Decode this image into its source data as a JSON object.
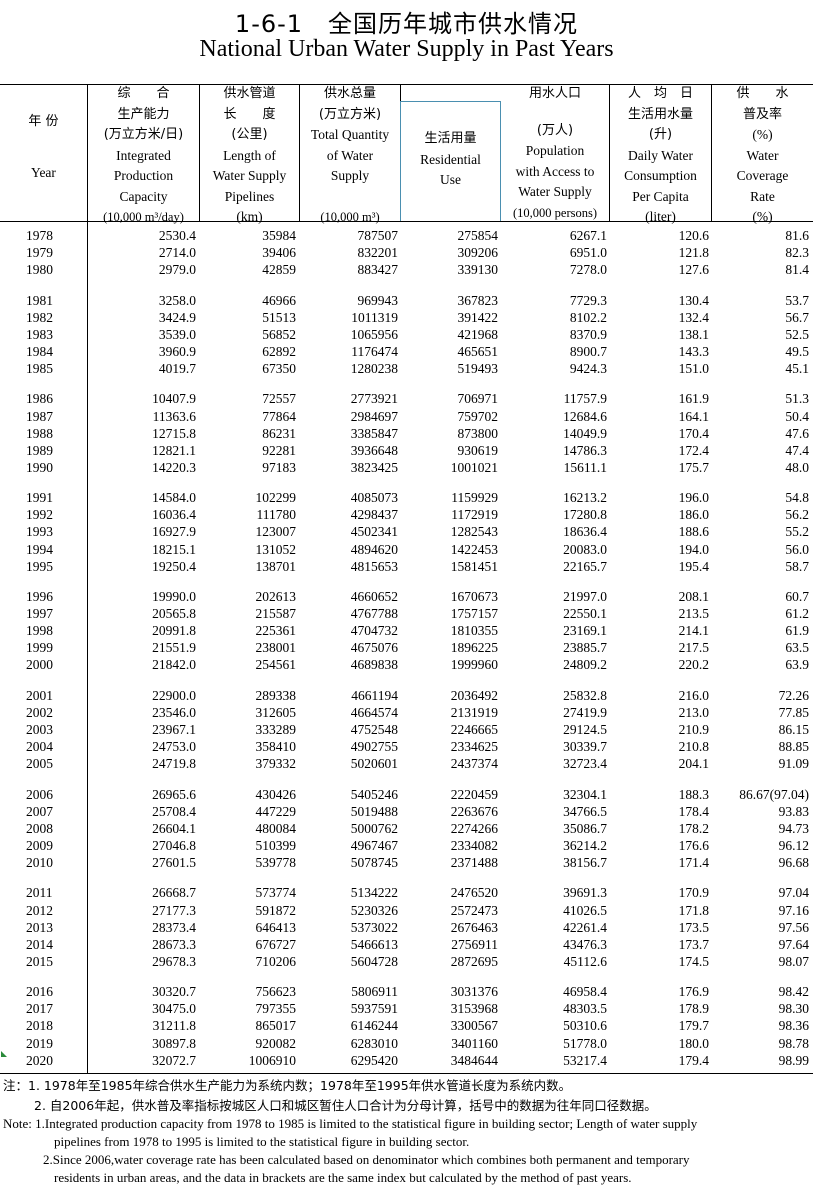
{
  "title": {
    "cn": "1-6-1　全国历年城市供水情况",
    "en": "National Urban Water Supply in Past Years"
  },
  "headers": {
    "year": {
      "cn": "年  份",
      "en": "Year"
    },
    "capacity": {
      "cn1": "综　　合",
      "cn2": "生产能力",
      "cn3": "(万立方米/日)",
      "en1": "Integrated",
      "en2": "Production",
      "en3": "Capacity",
      "unit": "(10,000 m³/day)"
    },
    "pipelines": {
      "cn1": "供水管道",
      "cn2": "长　　度",
      "cn3": "(公里)",
      "en1": "Length of",
      "en2": "Water Supply",
      "en3": "Pipelines",
      "unit": "(km)"
    },
    "total": {
      "cn1": "供水总量",
      "cn2": "(万立方米)",
      "en1": "Total Quantity",
      "en2": "of Water",
      "en3": "Supply",
      "unit": "(10,000 m³)"
    },
    "residential": {
      "cn": "生活用量",
      "en1": "Residential",
      "en2": "Use"
    },
    "population": {
      "cn1": "用水人口",
      "cn2": "(万人)",
      "en1": "Population",
      "en2": "with Access to",
      "en3": "Water Supply",
      "unit": "(10,000 persons)"
    },
    "daily": {
      "cn1": "人　均　日",
      "cn2": "生活用水量",
      "cn3": "(升)",
      "en1": "Daily Water",
      "en2": "Consumption",
      "en3": "Per Capita",
      "unit": "(liter)"
    },
    "coverage": {
      "cn1": "供　　水",
      "cn2": "普及率",
      "cn3": "(%)",
      "en1": "Water",
      "en2": "Coverage",
      "en3": "Rate",
      "unit": "(%)"
    }
  },
  "rows": [
    [
      "1978",
      "2530.4",
      "35984",
      "787507",
      "275854",
      "6267.1",
      "120.6",
      "81.6"
    ],
    [
      "1979",
      "2714.0",
      "39406",
      "832201",
      "309206",
      "6951.0",
      "121.8",
      "82.3"
    ],
    [
      "1980",
      "2979.0",
      "42859",
      "883427",
      "339130",
      "7278.0",
      "127.6",
      "81.4"
    ],
    [
      "1981",
      "3258.0",
      "46966",
      "969943",
      "367823",
      "7729.3",
      "130.4",
      "53.7"
    ],
    [
      "1982",
      "3424.9",
      "51513",
      "1011319",
      "391422",
      "8102.2",
      "132.4",
      "56.7"
    ],
    [
      "1983",
      "3539.0",
      "56852",
      "1065956",
      "421968",
      "8370.9",
      "138.1",
      "52.5"
    ],
    [
      "1984",
      "3960.9",
      "62892",
      "1176474",
      "465651",
      "8900.7",
      "143.3",
      "49.5"
    ],
    [
      "1985",
      "4019.7",
      "67350",
      "1280238",
      "519493",
      "9424.3",
      "151.0",
      "45.1"
    ],
    [
      "1986",
      "10407.9",
      "72557",
      "2773921",
      "706971",
      "11757.9",
      "161.9",
      "51.3"
    ],
    [
      "1987",
      "11363.6",
      "77864",
      "2984697",
      "759702",
      "12684.6",
      "164.1",
      "50.4"
    ],
    [
      "1988",
      "12715.8",
      "86231",
      "3385847",
      "873800",
      "14049.9",
      "170.4",
      "47.6"
    ],
    [
      "1989",
      "12821.1",
      "92281",
      "3936648",
      "930619",
      "14786.3",
      "172.4",
      "47.4"
    ],
    [
      "1990",
      "14220.3",
      "97183",
      "3823425",
      "1001021",
      "15611.1",
      "175.7",
      "48.0"
    ],
    [
      "1991",
      "14584.0",
      "102299",
      "4085073",
      "1159929",
      "16213.2",
      "196.0",
      "54.8"
    ],
    [
      "1992",
      "16036.4",
      "111780",
      "4298437",
      "1172919",
      "17280.8",
      "186.0",
      "56.2"
    ],
    [
      "1993",
      "16927.9",
      "123007",
      "4502341",
      "1282543",
      "18636.4",
      "188.6",
      "55.2"
    ],
    [
      "1994",
      "18215.1",
      "131052",
      "4894620",
      "1422453",
      "20083.0",
      "194.0",
      "56.0"
    ],
    [
      "1995",
      "19250.4",
      "138701",
      "4815653",
      "1581451",
      "22165.7",
      "195.4",
      "58.7"
    ],
    [
      "1996",
      "19990.0",
      "202613",
      "4660652",
      "1670673",
      "21997.0",
      "208.1",
      "60.7"
    ],
    [
      "1997",
      "20565.8",
      "215587",
      "4767788",
      "1757157",
      "22550.1",
      "213.5",
      "61.2"
    ],
    [
      "1998",
      "20991.8",
      "225361",
      "4704732",
      "1810355",
      "23169.1",
      "214.1",
      "61.9"
    ],
    [
      "1999",
      "21551.9",
      "238001",
      "4675076",
      "1896225",
      "23885.7",
      "217.5",
      "63.5"
    ],
    [
      "2000",
      "21842.0",
      "254561",
      "4689838",
      "1999960",
      "24809.2",
      "220.2",
      "63.9"
    ],
    [
      "2001",
      "22900.0",
      "289338",
      "4661194",
      "2036492",
      "25832.8",
      "216.0",
      "72.26"
    ],
    [
      "2002",
      "23546.0",
      "312605",
      "4664574",
      "2131919",
      "27419.9",
      "213.0",
      "77.85"
    ],
    [
      "2003",
      "23967.1",
      "333289",
      "4752548",
      "2246665",
      "29124.5",
      "210.9",
      "86.15"
    ],
    [
      "2004",
      "24753.0",
      "358410",
      "4902755",
      "2334625",
      "30339.7",
      "210.8",
      "88.85"
    ],
    [
      "2005",
      "24719.8",
      "379332",
      "5020601",
      "2437374",
      "32723.4",
      "204.1",
      "91.09"
    ],
    [
      "2006",
      "26965.6",
      "430426",
      "5405246",
      "2220459",
      "32304.1",
      "188.3",
      "86.67(97.04)"
    ],
    [
      "2007",
      "25708.4",
      "447229",
      "5019488",
      "2263676",
      "34766.5",
      "178.4",
      "93.83"
    ],
    [
      "2008",
      "26604.1",
      "480084",
      "5000762",
      "2274266",
      "35086.7",
      "178.2",
      "94.73"
    ],
    [
      "2009",
      "27046.8",
      "510399",
      "4967467",
      "2334082",
      "36214.2",
      "176.6",
      "96.12"
    ],
    [
      "2010",
      "27601.5",
      "539778",
      "5078745",
      "2371488",
      "38156.7",
      "171.4",
      "96.68"
    ],
    [
      "2011",
      "26668.7",
      "573774",
      "5134222",
      "2476520",
      "39691.3",
      "170.9",
      "97.04"
    ],
    [
      "2012",
      "27177.3",
      "591872",
      "5230326",
      "2572473",
      "41026.5",
      "171.8",
      "97.16"
    ],
    [
      "2013",
      "28373.4",
      "646413",
      "5373022",
      "2676463",
      "42261.4",
      "173.5",
      "97.56"
    ],
    [
      "2014",
      "28673.3",
      "676727",
      "5466613",
      "2756911",
      "43476.3",
      "173.7",
      "97.64"
    ],
    [
      "2015",
      "29678.3",
      "710206",
      "5604728",
      "2872695",
      "45112.6",
      "174.5",
      "98.07"
    ],
    [
      "2016",
      "30320.7",
      "756623",
      "5806911",
      "3031376",
      "46958.4",
      "176.9",
      "98.42"
    ],
    [
      "2017",
      "30475.0",
      "797355",
      "5937591",
      "3153968",
      "48303.5",
      "178.9",
      "98.30"
    ],
    [
      "2018",
      "31211.8",
      "865017",
      "6146244",
      "3300567",
      "50310.6",
      "179.7",
      "98.36"
    ],
    [
      "2019",
      "30897.8",
      "920082",
      "6283010",
      "3401160",
      "51778.0",
      "180.0",
      "98.78"
    ],
    [
      "2020",
      "32072.7",
      "1006910",
      "6295420",
      "3484644",
      "53217.4",
      "179.4",
      "98.99"
    ]
  ],
  "notes": {
    "cn1": "注：1. 1978年至1985年综合供水生产能力为系统内数；1978年至1995年供水管道长度为系统内数。",
    "cn2": "2. 自2006年起，供水普及率指标按城区人口和城区暂住人口合计为分母计算，括号中的数据为往年同口径数据。",
    "en1a": "Note: 1.Integrated production capacity from 1978 to 1985 is limited to the statistical figure in building sector; Length of water supply",
    "en1b": "pipelines from 1978 to 1995 is limited to the statistical figure in building sector.",
    "en2a": "2.Since 2006,water coverage rate has been calculated based on denominator which combines both permanent and temporary",
    "en2b": "residents in urban areas, and the data in brackets are the same index but calculated by the method of past years."
  }
}
